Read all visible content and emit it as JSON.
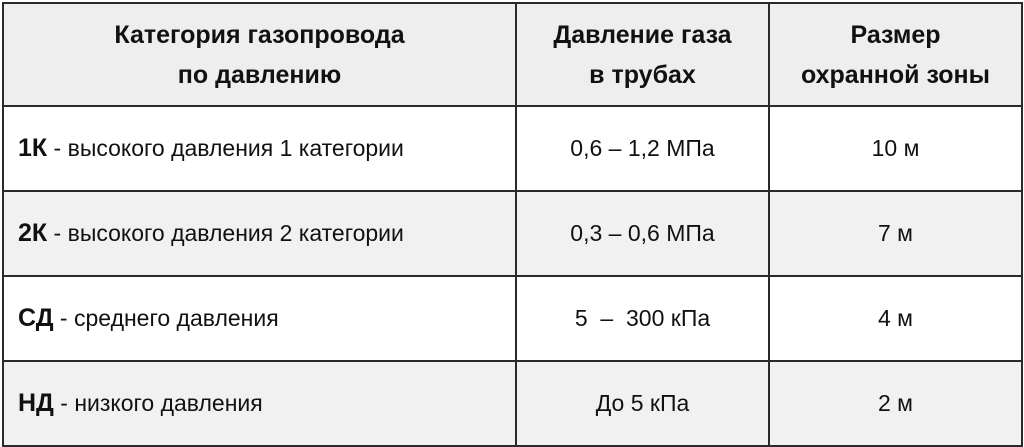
{
  "table": {
    "headers": [
      {
        "line1": "Категория газопровода",
        "line2": "по давлению"
      },
      {
        "line1": "Давление газа",
        "line2": "в трубах"
      },
      {
        "line1": "Размер",
        "line2": "охранной зоны"
      }
    ],
    "rows": [
      {
        "code": "1К",
        "desc": " - высокого давления 1 категории",
        "pressure": "0,6 – 1,2 МПа",
        "zone": "10 м"
      },
      {
        "code": "2К",
        "desc": " - высокого давления 2 категории",
        "pressure": "0,3 – 0,6 МПа",
        "zone": "7 м"
      },
      {
        "code": "СД",
        "desc": " - среднего давления",
        "pressure": "5  –  300 кПа",
        "zone": "4 м"
      },
      {
        "code": "НД",
        "desc": " - низкого давления",
        "pressure": "До 5 кПа",
        "zone": "2 м"
      }
    ]
  },
  "colors": {
    "header_bg": "#eeeeee",
    "alt_row_bg": "#f1f1f1",
    "border": "#2a2a2a"
  }
}
